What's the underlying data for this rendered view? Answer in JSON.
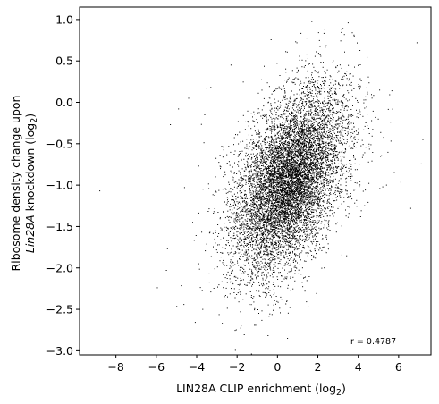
{
  "chart_data": {
    "type": "scatter",
    "title": "",
    "xlabel": {
      "prefix": "LIN28A CLIP enrichment (log",
      "subscript": "2",
      "suffix": ")"
    },
    "ylabel": {
      "line1": "Ribosome density change upon",
      "line2_italic": "Lin28A",
      "line2_rest": " knockdown (log",
      "line2_subscript": "2",
      "line2_suffix": ")"
    },
    "xlim": [
      -9.8,
      7.6
    ],
    "ylim": [
      -3.05,
      1.15
    ],
    "xticks": [
      -8,
      -6,
      -4,
      -2,
      0,
      2,
      4,
      6
    ],
    "yticks": [
      -3.0,
      -2.5,
      -2.0,
      -1.5,
      -1.0,
      -0.5,
      0.0,
      0.5,
      1.0
    ],
    "xtick_labels": [
      "−8",
      "−6",
      "−4",
      "−2",
      "0",
      "2",
      "4",
      "6"
    ],
    "ytick_labels": [
      "−3.0",
      "−2.5",
      "−2.0",
      "−1.5",
      "−1.0",
      "−0.5",
      "0.0",
      "0.5",
      "1.0"
    ],
    "grid": false,
    "annotation": "r = 0.4787",
    "marker_color": "#000000",
    "point_count_estimate": 9000,
    "distribution": {
      "x_mean": 0.6,
      "x_sd": 1.35,
      "y_mean": -0.95,
      "y_sd": 0.55,
      "correlation": 0.4787
    },
    "outliers": [
      {
        "x": -8.8,
        "y": -1.07
      },
      {
        "x": -5.5,
        "y": -2.03
      },
      {
        "x": -5.3,
        "y": -0.27
      },
      {
        "x": -4.9,
        "y": -0.08
      },
      {
        "x": -4.6,
        "y": -1.03
      },
      {
        "x": -4.4,
        "y": 0.05
      },
      {
        "x": -4.2,
        "y": -1.45
      },
      {
        "x": -3.9,
        "y": -0.77
      },
      {
        "x": -3.7,
        "y": -2.5
      },
      {
        "x": -3.6,
        "y": -0.15
      },
      {
        "x": -3.5,
        "y": 0.17
      },
      {
        "x": -3.3,
        "y": 0.18
      },
      {
        "x": -3.3,
        "y": -2.29
      },
      {
        "x": -3.9,
        "y": -1.95
      },
      {
        "x": -2.3,
        "y": 0.45
      },
      {
        "x": -1.8,
        "y": -2.7
      },
      {
        "x": 0.5,
        "y": -2.85
      },
      {
        "x": 3.5,
        "y": 0.96
      },
      {
        "x": 3.8,
        "y": 0.8
      },
      {
        "x": 5.4,
        "y": -1.0
      },
      {
        "x": 5.6,
        "y": -0.24
      },
      {
        "x": 6.6,
        "y": -1.28
      },
      {
        "x": 7.2,
        "y": -0.45
      }
    ]
  }
}
